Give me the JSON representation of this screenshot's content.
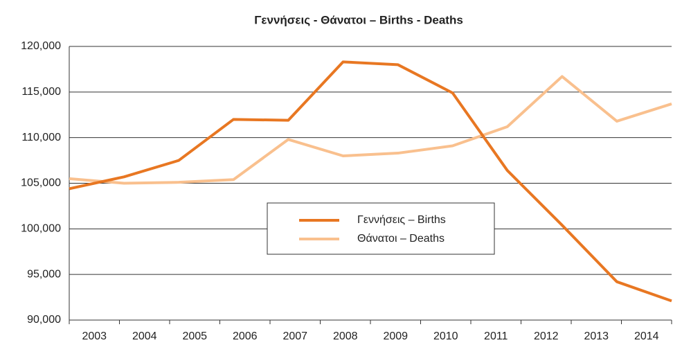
{
  "chart_data": {
    "type": "line",
    "title": "Γεννήσεις - Θάνατοι – Births - Deaths",
    "categories": [
      "2003",
      "2004",
      "2005",
      "2006",
      "2007",
      "2008",
      "2009",
      "2010",
      "2011",
      "2012",
      "2013",
      "2014"
    ],
    "series": [
      {
        "name": "Γεννήσεις – Births",
        "color": "#e87722",
        "values": [
          104400,
          105700,
          107500,
          112000,
          111900,
          118300,
          118000,
          114900,
          106400,
          100400,
          94200,
          92100
        ]
      },
      {
        "name": "Θάνατοι – Deaths",
        "color": "#f9c08e",
        "values": [
          105500,
          105000,
          105100,
          105400,
          109800,
          108000,
          108300,
          109100,
          111200,
          116700,
          111800,
          113700
        ]
      }
    ],
    "ylim": [
      90000,
      120000
    ],
    "yticks": [
      {
        "value": 90000,
        "label": "90,000"
      },
      {
        "value": 95000,
        "label": "95,000"
      },
      {
        "value": 100000,
        "label": "100,000"
      },
      {
        "value": 105000,
        "label": "105,000"
      },
      {
        "value": 110000,
        "label": "110,000"
      },
      {
        "value": 115000,
        "label": "115,000"
      },
      {
        "value": 120000,
        "label": "120,000"
      }
    ],
    "grid": true,
    "legend": "center"
  }
}
